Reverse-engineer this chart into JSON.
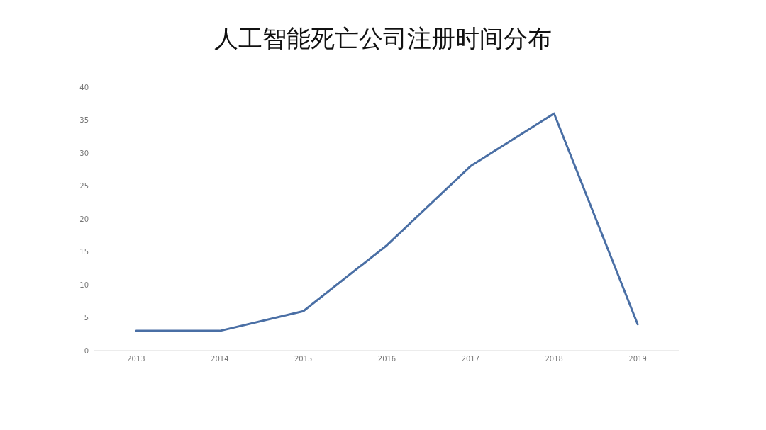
{
  "chart_data": {
    "type": "line",
    "title": "人工智能死亡公司注册时间分布",
    "categories": [
      "2013",
      "2014",
      "2015",
      "2016",
      "2017",
      "2018",
      "2019"
    ],
    "series": [
      {
        "color": "#4a6fa5",
        "values": [
          3,
          3,
          6,
          16,
          28,
          36,
          4
        ]
      }
    ],
    "ylim": [
      0,
      40
    ],
    "yticks": [
      0,
      5,
      10,
      15,
      20,
      25,
      30,
      35,
      40
    ]
  }
}
